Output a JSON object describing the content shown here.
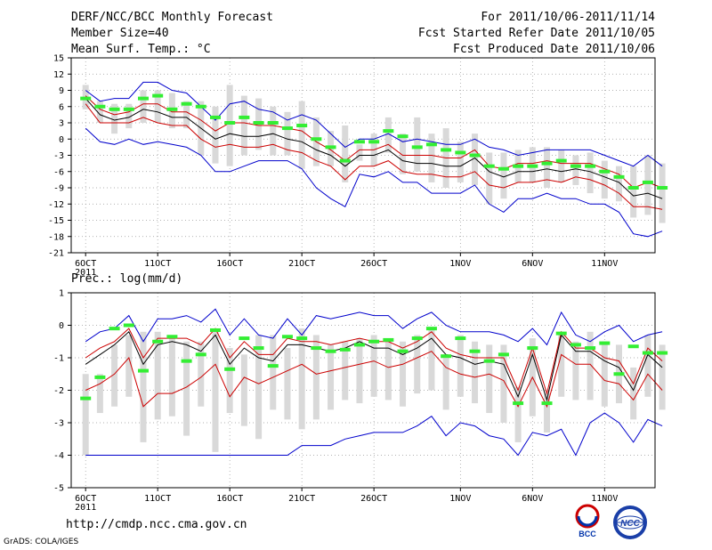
{
  "header": {
    "title": "DERF/NCC/BCC Monthly Forecast",
    "member_size": "Member Size=40",
    "variable": "Mean Surf. Temp.: °C",
    "forecast_period": "For 2011/10/06-2011/11/14",
    "refer_date": "Fcst Started Refer Date 2011/10/05",
    "produced_date": "Fcst Produced Date 2011/10/06"
  },
  "footer": {
    "url": "http://cmdp.ncc.cma.gov.cn",
    "grads": "GrADS: COLA/IGES",
    "logo_bcc": "BCC",
    "logo_ncc": "NCC"
  },
  "colors": {
    "mean": "#000000",
    "spread": "#cc0000",
    "extreme": "#0000cc",
    "box": "#d9d9d9",
    "obs": "#33ee33",
    "grid": "#999999"
  },
  "chart_data": [
    {
      "type": "line",
      "title": "Mean Surf. Temp.: °C",
      "x_tick_labels": [
        "6OCT",
        "11OCT",
        "16OCT",
        "21OCT",
        "26OCT",
        "1NOV",
        "6NOV",
        "11NOV"
      ],
      "x_tick_days": [
        0,
        5,
        10,
        15,
        20,
        26,
        31,
        36
      ],
      "x_year_label": "2011",
      "x_range_days": [
        -1,
        39.5
      ],
      "ylim": [
        -21,
        15
      ],
      "yticks": [
        -21,
        -18,
        -15,
        -12,
        -9,
        -6,
        -3,
        0,
        3,
        6,
        9,
        12,
        15
      ],
      "series": [
        {
          "name": "max",
          "values": [
            9,
            7,
            7.5,
            7.5,
            10.5,
            10.5,
            9,
            8.5,
            6,
            3.5,
            6.5,
            7,
            5.5,
            5,
            3.5,
            4.5,
            3.5,
            1,
            -1.5,
            0,
            0,
            1,
            -0.5,
            0,
            -0.5,
            -1,
            -1,
            0,
            -1.5,
            -2,
            -3,
            -2.5,
            -2,
            -2,
            -2,
            -2,
            -3,
            -4,
            -5,
            -3,
            -5
          ]
        },
        {
          "name": "upper",
          "values": [
            8,
            5.5,
            4.5,
            5,
            6.5,
            6.5,
            5,
            5,
            3.5,
            1.5,
            3,
            3,
            2.5,
            2.5,
            2,
            1.5,
            -0.5,
            -2,
            -4,
            -2,
            -2,
            -1,
            -3,
            -3,
            -3,
            -3.5,
            -3.5,
            -2,
            -5,
            -5.5,
            -4.5,
            -4.5,
            -4,
            -4.5,
            -4.5,
            -4.5,
            -5.5,
            -6.5,
            -9,
            -8,
            -9
          ]
        },
        {
          "name": "mean",
          "values": [
            7.5,
            4.5,
            3.5,
            4,
            5.5,
            5,
            4,
            4,
            2,
            0,
            1,
            0.5,
            0.5,
            1,
            0,
            -0.5,
            -2,
            -3,
            -5,
            -3,
            -3,
            -2,
            -4,
            -4.5,
            -4.5,
            -5,
            -5,
            -3.5,
            -6,
            -7,
            -6,
            -6,
            -5.5,
            -6,
            -5.5,
            -6,
            -7,
            -8,
            -10.5,
            -10,
            -11
          ]
        },
        {
          "name": "lower",
          "values": [
            6.5,
            3,
            3,
            3,
            4,
            3,
            2.5,
            2.5,
            0,
            -1.5,
            -1,
            -1.5,
            -1.5,
            -1,
            -2,
            -2.5,
            -4,
            -5,
            -7.5,
            -5,
            -5,
            -4,
            -6,
            -6.5,
            -6.5,
            -7,
            -7,
            -6,
            -8.5,
            -9,
            -8,
            -8,
            -7.5,
            -8,
            -7,
            -7.5,
            -8.5,
            -10,
            -12.5,
            -12.5,
            -13
          ]
        },
        {
          "name": "min",
          "values": [
            2,
            -0.5,
            -1,
            0,
            -1,
            -0.5,
            -1,
            -1.5,
            -3,
            -6,
            -6,
            -5,
            -4,
            -4,
            -4,
            -5.5,
            -9,
            -11,
            -12.5,
            -6.5,
            -7,
            -6,
            -8,
            -8,
            -10,
            -10,
            -10,
            -8.5,
            -12,
            -13.5,
            -11,
            -11,
            -10,
            -11,
            -11,
            -12,
            -12,
            -13.5,
            -17.5,
            -18,
            -17
          ]
        },
        {
          "name": "box_top",
          "values": [
            10,
            7,
            6.5,
            6.5,
            9,
            9,
            8.5,
            7,
            7,
            6,
            10,
            8,
            7.5,
            6,
            5,
            7,
            4,
            1.5,
            2.5,
            -1,
            1,
            4,
            1,
            4,
            1,
            2,
            -0.5,
            1,
            -2.5,
            -2.5,
            -2,
            -1.5,
            -1.5,
            -2,
            -3,
            -2.5,
            -4,
            -5,
            -5,
            -3,
            -4.5
          ]
        },
        {
          "name": "box_bottom",
          "values": [
            5.5,
            3,
            1,
            2,
            3,
            3,
            2,
            2,
            -3,
            -4.5,
            -5,
            -3,
            -2,
            -3,
            -3,
            -5.5,
            -5,
            -5,
            -8,
            -4,
            -5,
            -2.5,
            -6.5,
            -6,
            -8,
            -9,
            -8,
            -8.5,
            -12,
            -11,
            -8,
            -8,
            -9,
            -8,
            -8.5,
            -10,
            -11,
            -11.5,
            -14.5,
            -14,
            -15.5
          ]
        },
        {
          "name": "observed",
          "values": [
            7.5,
            6,
            5.5,
            5.5,
            7.5,
            8,
            5.5,
            6.5,
            6,
            4,
            3,
            4,
            3,
            3,
            2,
            2.5,
            0,
            -1.5,
            -4,
            -0.5,
            -0.5,
            1.5,
            0.5,
            -1.5,
            -1,
            -2,
            -2.5,
            -3,
            -5,
            -5.5,
            -5,
            -5,
            -4.5,
            -4,
            -5,
            -5,
            -6,
            -7,
            -9,
            -8,
            -9
          ]
        }
      ]
    },
    {
      "type": "line",
      "title": "Prec.: log(mm/d)",
      "x_tick_labels": [
        "6OCT",
        "11OCT",
        "16OCT",
        "21OCT",
        "26OCT",
        "1NOV",
        "6NOV",
        "11NOV"
      ],
      "x_tick_days": [
        0,
        5,
        10,
        15,
        20,
        26,
        31,
        36
      ],
      "x_year_label": "2011",
      "x_range_days": [
        -1,
        39.5
      ],
      "ylim": [
        -5,
        1
      ],
      "yticks": [
        -5,
        -4,
        -3,
        -2,
        -1,
        0,
        1
      ],
      "series": [
        {
          "name": "max",
          "values": [
            -0.5,
            -0.2,
            -0.1,
            0.3,
            -0.5,
            0.2,
            0.2,
            0.3,
            0.1,
            0.5,
            -0.3,
            0.2,
            -0.3,
            -0.4,
            0.2,
            -0.3,
            0.3,
            0.2,
            0.3,
            0.4,
            0.3,
            0.3,
            -0.1,
            0.2,
            0.4,
            0,
            -0.2,
            -0.2,
            -0.2,
            -0.3,
            -0.5,
            -0.1,
            -0.6,
            0.4,
            -0.3,
            -0.5,
            -0.2,
            0,
            -0.5,
            -0.3,
            -0.2
          ]
        },
        {
          "name": "upper",
          "values": [
            -1,
            -0.7,
            -0.5,
            -0.1,
            -1,
            -0.4,
            -0.4,
            -0.4,
            -0.6,
            -0.1,
            -1,
            -0.5,
            -0.9,
            -0.9,
            -0.4,
            -0.5,
            -0.5,
            -0.6,
            -0.5,
            -0.4,
            -0.5,
            -0.5,
            -0.7,
            -0.5,
            -0.2,
            -0.7,
            -0.9,
            -1,
            -1,
            -1,
            -2,
            -0.7,
            -2.1,
            -0.2,
            -0.7,
            -0.7,
            -1,
            -1.1,
            -1.8,
            -0.7,
            -1.1
          ]
        },
        {
          "name": "mean",
          "values": [
            -1.2,
            -0.9,
            -0.6,
            -0.2,
            -1.2,
            -0.6,
            -0.5,
            -0.6,
            -0.8,
            -0.3,
            -1.2,
            -0.7,
            -1,
            -1.1,
            -0.6,
            -0.6,
            -0.7,
            -0.8,
            -0.7,
            -0.5,
            -0.7,
            -0.7,
            -0.9,
            -0.7,
            -0.4,
            -0.9,
            -1,
            -1.2,
            -1.1,
            -1.2,
            -2.2,
            -0.9,
            -2.3,
            -0.3,
            -0.8,
            -0.8,
            -1.1,
            -1.3,
            -2,
            -0.9,
            -1.3
          ]
        },
        {
          "name": "lower",
          "values": [
            -2,
            -1.8,
            -1.5,
            -1,
            -2.5,
            -2.1,
            -2.1,
            -1.9,
            -1.6,
            -1.2,
            -2.2,
            -1.6,
            -1.8,
            -1.6,
            -1.4,
            -1.2,
            -1.5,
            -1.4,
            -1.3,
            -1.2,
            -1.1,
            -1.3,
            -1.2,
            -1,
            -0.8,
            -1.3,
            -1.5,
            -1.6,
            -1.5,
            -1.7,
            -2.5,
            -1.6,
            -2.5,
            -0.9,
            -1.2,
            -1.2,
            -1.7,
            -1.8,
            -2.3,
            -1.5,
            -2
          ]
        },
        {
          "name": "min",
          "values": [
            -4,
            -4,
            -4,
            -4,
            -4,
            -4,
            -4,
            -4,
            -4,
            -4,
            -4,
            -4,
            -4,
            -4,
            -4,
            -3.7,
            -3.7,
            -3.7,
            -3.5,
            -3.4,
            -3.3,
            -3.3,
            -3.3,
            -3.1,
            -2.8,
            -3.4,
            -3,
            -3.1,
            -3.4,
            -3.5,
            -4,
            -3.3,
            -3.4,
            -3.2,
            -4,
            -3,
            -2.7,
            -3,
            -3.6,
            -2.9,
            -3.1
          ]
        },
        {
          "name": "box_top",
          "values": [
            -1.5,
            -1.5,
            -0.6,
            -0.3,
            -0.2,
            -0.2,
            -0.3,
            -0.5,
            -0.5,
            -0.2,
            -0.7,
            -0.9,
            -0.3,
            -0.3,
            -0.7,
            -0.1,
            -0.3,
            -0.6,
            -0.5,
            -0.4,
            -0.3,
            -0.4,
            -0.5,
            -0.3,
            -0.1,
            -0.9,
            -0.3,
            -0.5,
            -0.6,
            -0.6,
            -1.9,
            -0.4,
            -2.1,
            -0.2,
            -0.5,
            -0.2,
            -0.5,
            -0.6,
            -1.3,
            -0.3,
            -0.6
          ]
        },
        {
          "name": "box_bottom",
          "values": [
            -4,
            -2.7,
            -2.5,
            -2.2,
            -3.6,
            -2.9,
            -2.8,
            -3.4,
            -2.5,
            -3.9,
            -2.7,
            -3.1,
            -3.5,
            -2.6,
            -2.9,
            -3.2,
            -2.9,
            -2.6,
            -2.3,
            -2.4,
            -2.2,
            -2.3,
            -2.5,
            -2.1,
            -2,
            -2.6,
            -2.2,
            -2.4,
            -2.7,
            -3,
            -3.6,
            -2.8,
            -3.3,
            -2.2,
            -2.3,
            -2.3,
            -2.5,
            -2.4,
            -2.9,
            -2.2,
            -2.6
          ]
        },
        {
          "name": "observed",
          "values": [
            -2.25,
            -1.6,
            -0.1,
            0,
            -1.4,
            -0.5,
            -0.35,
            -1.1,
            -0.9,
            -0.15,
            -1.35,
            -0.4,
            -0.7,
            -1.25,
            -0.35,
            -0.4,
            -0.7,
            -0.8,
            -0.75,
            -0.6,
            -0.5,
            -0.45,
            -0.8,
            -0.4,
            -0.1,
            -0.95,
            -0.4,
            -0.8,
            -1.1,
            -0.9,
            -2.4,
            -0.7,
            -2.4,
            -0.25,
            -0.6,
            -0.7,
            -0.55,
            -1.5,
            -0.65,
            -0.85,
            -0.85
          ]
        }
      ]
    }
  ]
}
